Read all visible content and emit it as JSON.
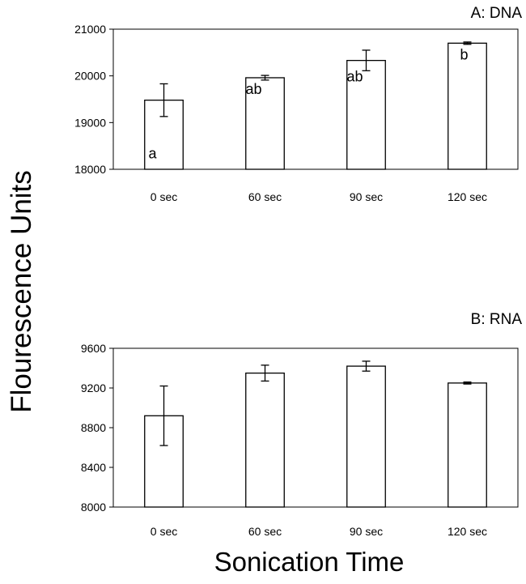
{
  "figure": {
    "ylabel": "Flourescence Units",
    "xlabel": "Sonication Time"
  },
  "chart_data": [
    {
      "type": "bar",
      "title": "A: DNA",
      "categories": [
        "0 sec",
        "60 sec",
        "90 sec",
        "120 sec"
      ],
      "values": [
        19480,
        19960,
        20330,
        20700
      ],
      "error": [
        350,
        50,
        220,
        25
      ],
      "annotations": [
        "a",
        "ab",
        "ab",
        "b"
      ],
      "ylim": [
        18000,
        21000
      ],
      "yticks": [
        18000,
        19000,
        20000,
        21000
      ],
      "bar_color": "#ffffff",
      "grid": false
    },
    {
      "type": "bar",
      "title": "B: RNA",
      "categories": [
        "0 sec",
        "60 sec",
        "90 sec",
        "120 sec"
      ],
      "values": [
        8920,
        9350,
        9420,
        9250
      ],
      "error": [
        300,
        80,
        50,
        10
      ],
      "annotations": [
        "",
        "",
        "",
        ""
      ],
      "ylim": [
        8000,
        9600
      ],
      "yticks": [
        8000,
        8400,
        8800,
        9200,
        9600
      ],
      "bar_color": "#ffffff",
      "grid": false
    }
  ]
}
